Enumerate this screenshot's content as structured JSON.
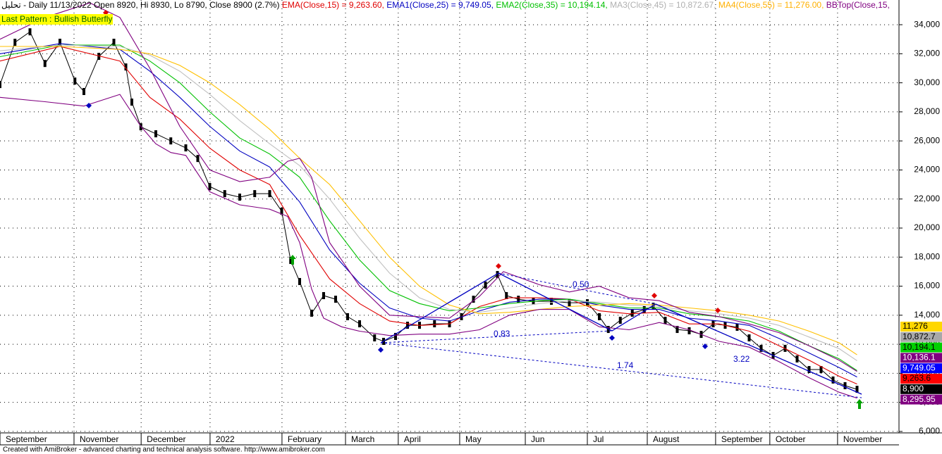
{
  "header": [
    {
      "text": "تحليل - Daily 11/13/2022 Open 8920, Hi 8930, Lo 8790, Close 8900 (2.7%)",
      "color": "#000000"
    },
    {
      "text": "EMA(Close,15) = 9,263.60,",
      "color": "#e00000"
    },
    {
      "text": "EMA1(Close,25) = 9,749.05,",
      "color": "#0000c0"
    },
    {
      "text": "EMA2(Close,35) = 10,194.14,",
      "color": "#00c000"
    },
    {
      "text": "MA3(Close,45) = 10,872.67,",
      "color": "#b0b0b0"
    },
    {
      "text": "MA4(Close,55) = 11,276.00,",
      "color": "#ffb000"
    },
    {
      "text": "BBTop(Close,15,",
      "color": "#800080"
    }
  ],
  "pattern_label": "Last Pattern : Bullish Butterfly",
  "annotations": [
    "0.50",
    "0.83",
    "1.74",
    "3.22"
  ],
  "footer": "Created with AmiBroker - advanced charting and technical analysis software. http://www.amibroker.com",
  "chart_data": {
    "type": "line",
    "xlim": [
      0,
      300
    ],
    "ylim": [
      5900,
      35700
    ],
    "grid": true,
    "xticks": [
      {
        "value": 0,
        "label": "September"
      },
      {
        "value": 24.7,
        "label": "November"
      },
      {
        "value": 47.1,
        "label": "December"
      },
      {
        "value": 70.1,
        "label": "2022"
      },
      {
        "value": 94.1,
        "label": "February"
      },
      {
        "value": 115.3,
        "label": "March"
      },
      {
        "value": 132.9,
        "label": "April"
      },
      {
        "value": 153.4,
        "label": "May"
      },
      {
        "value": 175.3,
        "label": "Jun"
      },
      {
        "value": 196,
        "label": "Jul"
      },
      {
        "value": 216,
        "label": "August"
      },
      {
        "value": 238.8,
        "label": "September"
      },
      {
        "value": 256.9,
        "label": "October"
      },
      {
        "value": 279.5,
        "label": "November"
      }
    ],
    "yticks": [
      {
        "value": 6000,
        "label": "6,000"
      },
      {
        "value": 8000,
        "label": "8,000"
      },
      {
        "value": 10000,
        "label": "10,000"
      },
      {
        "value": 12000,
        "label": "12,000"
      },
      {
        "value": 14000,
        "label": "14,000"
      },
      {
        "value": 16000,
        "label": "16,000"
      },
      {
        "value": 18000,
        "label": "18,000"
      },
      {
        "value": 20000,
        "label": "20,000"
      },
      {
        "value": 22000,
        "label": "22,000"
      },
      {
        "value": 24000,
        "label": "24,000"
      },
      {
        "value": 26000,
        "label": "26,000"
      },
      {
        "value": 28000,
        "label": "28,000"
      },
      {
        "value": 30000,
        "label": "30,000"
      },
      {
        "value": 32000,
        "label": "32,000"
      },
      {
        "value": 34000,
        "label": "34,000"
      }
    ],
    "series": [
      {
        "color": "#000000",
        "bars": true,
        "x": [
          0,
          5,
          10,
          15,
          20,
          25,
          28,
          33,
          38,
          42,
          44,
          47,
          52,
          57,
          62,
          66,
          70,
          75,
          80,
          85,
          90,
          94,
          97,
          100,
          104,
          108,
          112,
          116,
          120,
          125,
          128,
          132,
          136,
          140,
          145,
          150,
          154,
          158,
          162,
          166,
          169,
          173,
          178,
          184,
          190,
          196,
          200,
          203,
          207,
          211,
          215,
          218,
          222,
          226,
          230,
          234,
          238,
          242,
          246,
          250,
          254,
          258,
          262,
          266,
          270,
          274,
          278,
          282,
          286
        ],
        "values": [
          29880,
          32790,
          33510,
          31330,
          32790,
          30120,
          29400,
          31820,
          32790,
          31090,
          28670,
          26970,
          26490,
          26000,
          25520,
          24790,
          22860,
          22370,
          22130,
          22370,
          22370,
          21160,
          17770,
          16320,
          14140,
          15350,
          15100,
          13900,
          13410,
          12440,
          12200,
          12540,
          13310,
          13310,
          13410,
          13410,
          13900,
          15100,
          16080,
          16800,
          15350,
          15100,
          14960,
          14960,
          14860,
          14860,
          13900,
          13020,
          13650,
          14140,
          14380,
          14620,
          13650,
          13020,
          12930,
          12680,
          13410,
          13310,
          13170,
          12440,
          11720,
          11230,
          11720,
          10990,
          10260,
          10260,
          9540,
          9150,
          8900
        ]
      },
      {
        "color": "#e00000",
        "x": [
          0,
          20,
          40,
          50,
          60,
          70,
          80,
          90,
          100,
          110,
          120,
          130,
          140,
          150,
          160,
          170,
          180,
          190,
          200,
          210,
          220,
          230,
          240,
          250,
          260,
          270,
          280,
          286
        ],
        "values": [
          31500,
          32500,
          31500,
          29000,
          27500,
          25500,
          24000,
          23000,
          19500,
          16500,
          14800,
          13600,
          13300,
          13400,
          14600,
          15200,
          15200,
          15100,
          14300,
          14100,
          14200,
          13400,
          13400,
          12900,
          11900,
          10900,
          9800,
          9263.6
        ]
      },
      {
        "color": "#0000c0",
        "x": [
          0,
          20,
          40,
          50,
          60,
          70,
          80,
          90,
          100,
          110,
          120,
          130,
          140,
          150,
          160,
          170,
          180,
          190,
          200,
          210,
          220,
          230,
          240,
          250,
          260,
          270,
          280,
          286
        ],
        "values": [
          32000,
          32700,
          32300,
          30800,
          29000,
          27000,
          25300,
          24200,
          21800,
          18500,
          16200,
          14500,
          13800,
          13600,
          14300,
          14900,
          15100,
          15100,
          14700,
          14400,
          14400,
          13800,
          13600,
          13300,
          12400,
          11400,
          10400,
          9749.05
        ]
      },
      {
        "color": "#00c000",
        "x": [
          0,
          20,
          40,
          50,
          60,
          70,
          80,
          90,
          100,
          110,
          120,
          130,
          140,
          150,
          160,
          170,
          180,
          190,
          200,
          210,
          220,
          230,
          240,
          250,
          260,
          270,
          280,
          286
        ],
        "values": [
          31800,
          32600,
          32600,
          31500,
          30000,
          28000,
          26200,
          25100,
          23500,
          20500,
          17800,
          15700,
          14800,
          14300,
          14500,
          14800,
          15000,
          15100,
          14800,
          14500,
          14500,
          14100,
          13900,
          13600,
          12900,
          11900,
          11000,
          10194.14
        ]
      },
      {
        "color": "#c0c0c0",
        "x": [
          0,
          20,
          40,
          50,
          60,
          70,
          80,
          90,
          100,
          110,
          120,
          130,
          140,
          150,
          160,
          170,
          180,
          190,
          200,
          210,
          220,
          230,
          240,
          250,
          260,
          270,
          280,
          286
        ],
        "values": [
          32200,
          32600,
          32500,
          31900,
          30800,
          29200,
          27400,
          25800,
          24300,
          22000,
          19300,
          16900,
          15200,
          14400,
          14200,
          14500,
          14800,
          15000,
          14900,
          14700,
          14600,
          14300,
          14100,
          13800,
          13300,
          12500,
          11700,
          10872.67
        ]
      },
      {
        "color": "#ffc000",
        "x": [
          0,
          20,
          40,
          50,
          60,
          70,
          80,
          90,
          100,
          110,
          120,
          130,
          140,
          150,
          160,
          170,
          180,
          190,
          200,
          210,
          220,
          230,
          240,
          250,
          260,
          270,
          280,
          286
        ],
        "values": [
          32500,
          32500,
          32300,
          32000,
          31200,
          30000,
          28500,
          26800,
          24800,
          23000,
          20500,
          18000,
          16000,
          14700,
          14100,
          14200,
          14400,
          14600,
          14700,
          14800,
          14700,
          14500,
          14300,
          14000,
          13600,
          12900,
          12100,
          11276
        ]
      },
      {
        "color": "#800080",
        "x": [
          0,
          15,
          30,
          40,
          50,
          60,
          70,
          80,
          90,
          96,
          100,
          104,
          110,
          120,
          130,
          140,
          150,
          160,
          168,
          180,
          190,
          200,
          210,
          220,
          230,
          240,
          250,
          260,
          270,
          280,
          286
        ],
        "values": [
          33000,
          34500,
          35500,
          34500,
          31000,
          27000,
          24000,
          23200,
          23500,
          24600,
          24800,
          23500,
          19000,
          16000,
          14000,
          13900,
          13800,
          15300,
          17000,
          16100,
          15600,
          16000,
          15200,
          15000,
          14200,
          13900,
          13400,
          12800,
          11900,
          10900,
          10136.1
        ]
      },
      {
        "color": "#800080",
        "x": [
          0,
          15,
          28,
          40,
          47,
          52,
          57,
          62,
          70,
          80,
          90,
          96,
          100,
          104,
          108,
          114,
          120,
          130,
          140,
          150,
          160,
          170,
          180,
          190,
          200,
          210,
          220,
          230,
          240,
          250,
          260,
          270,
          280,
          286
        ],
        "values": [
          29000,
          28700,
          28400,
          29200,
          27000,
          25800,
          25200,
          25000,
          22500,
          21600,
          21300,
          20800,
          19000,
          15800,
          13800,
          13200,
          12900,
          12600,
          12700,
          12700,
          13000,
          14000,
          14400,
          14400,
          13200,
          13000,
          13500,
          13000,
          12200,
          11800,
          10800,
          9700,
          8700,
          8295.95
        ]
      }
    ],
    "price_labels": [
      {
        "label": "11,276",
        "color": "#ffd700",
        "text_color": "#000000"
      },
      {
        "label": "10,872.7",
        "color": "#a8a8a8",
        "text_color": "#000000"
      },
      {
        "label": "10,194.1",
        "color": "#00d000",
        "text_color": "#000000"
      },
      {
        "label": "10,136.1",
        "color": "#800080",
        "text_color": "#ffffff"
      },
      {
        "label": "9,749.05",
        "color": "#0000ff",
        "text_color": "#ffffff"
      },
      {
        "label": "9,263.6",
        "color": "#ff0000",
        "text_color": "#000000"
      },
      {
        "label": "8,900",
        "color": "#000000",
        "text_color": "#ffffff"
      },
      {
        "label": "8,295.95",
        "color": "#800080",
        "text_color": "#ffffff"
      }
    ]
  }
}
